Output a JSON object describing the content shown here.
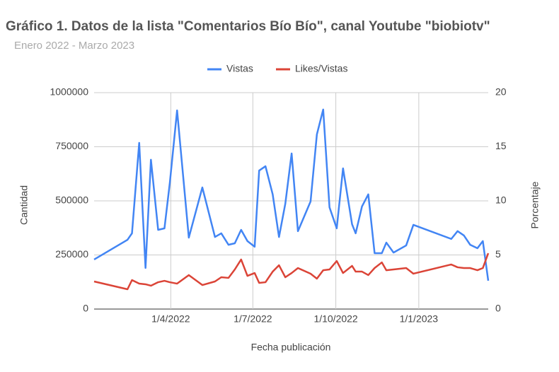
{
  "chart_data": {
    "type": "line",
    "title": "Gráfico 1. Datos de la lista \"Comentarios Bío Bío\", canal Youtube  \"biobiotv\"",
    "subtitle": "Enero 2022 - Marzo 2023",
    "x_label": "Fecha publicación",
    "y_label": "Cantidad",
    "y2_label": "Porcentaje",
    "x": [
      "2022-01-06",
      "2022-02-12",
      "2022-02-17",
      "2022-02-25",
      "2022-03-04",
      "2022-03-10",
      "2022-03-18",
      "2022-03-25",
      "2022-03-31",
      "2022-04-08",
      "2022-04-21",
      "2022-05-06",
      "2022-05-20",
      "2022-05-27",
      "2022-06-04",
      "2022-06-11",
      "2022-06-18",
      "2022-06-25",
      "2022-07-03",
      "2022-07-08",
      "2022-07-15",
      "2022-07-23",
      "2022-07-30",
      "2022-08-06",
      "2022-08-13",
      "2022-08-20",
      "2022-09-03",
      "2022-09-10",
      "2022-09-17",
      "2022-09-24",
      "2022-10-02",
      "2022-10-09",
      "2022-10-19",
      "2022-10-23",
      "2022-10-30",
      "2022-11-06",
      "2022-11-13",
      "2022-11-21",
      "2022-11-26",
      "2022-12-04",
      "2022-12-18",
      "2022-12-26",
      "2023-02-06",
      "2023-02-13",
      "2023-02-20",
      "2023-02-27",
      "2023-03-07",
      "2023-03-13",
      "2023-03-19"
    ],
    "series": [
      {
        "name": "Vistas",
        "color": "#4285f4",
        "axis": "y",
        "values": [
          229000,
          320000,
          350000,
          768000,
          190000,
          690000,
          366000,
          373000,
          585000,
          918000,
          330000,
          562000,
          333000,
          350000,
          297000,
          304000,
          366000,
          314000,
          288000,
          640000,
          660000,
          530000,
          333000,
          487000,
          719000,
          360000,
          497000,
          807000,
          922000,
          470000,
          373000,
          650000,
          392000,
          350000,
          474000,
          530000,
          258000,
          258000,
          307000,
          261000,
          294000,
          389000,
          324000,
          360000,
          340000,
          297000,
          281000,
          314000,
          131000
        ]
      },
      {
        "name": "Likes/Vistas",
        "color": "#db4437",
        "axis": "y2",
        "values": [
          2.55,
          1.83,
          2.68,
          2.35,
          2.29,
          2.16,
          2.48,
          2.61,
          2.48,
          2.35,
          3.14,
          2.22,
          2.55,
          2.94,
          2.88,
          3.66,
          4.58,
          3.07,
          3.33,
          2.42,
          2.48,
          3.46,
          4.05,
          2.94,
          3.33,
          3.79,
          3.27,
          2.81,
          3.59,
          3.66,
          4.44,
          3.33,
          3.99,
          3.46,
          3.46,
          3.14,
          3.79,
          4.31,
          3.59,
          3.66,
          3.79,
          3.27,
          4.12,
          3.86,
          3.79,
          3.79,
          3.59,
          3.79,
          5.16
        ]
      }
    ],
    "xlim": [
      "2022-01-06",
      "2023-03-19"
    ],
    "xticks": [
      {
        "value": "2022-04-01",
        "label": "1/4/2022"
      },
      {
        "value": "2022-07-01",
        "label": "1/7/2022"
      },
      {
        "value": "2022-10-01",
        "label": "1/10/2022"
      },
      {
        "value": "2023-01-01",
        "label": "1/1/2023"
      }
    ],
    "ylim": [
      0,
      1000000
    ],
    "yticks": [
      0,
      250000,
      500000,
      750000,
      1000000
    ],
    "y2lim": [
      0,
      20
    ],
    "y2ticks": [
      0,
      5,
      10,
      15,
      20
    ],
    "grid": true,
    "legend": "top"
  }
}
